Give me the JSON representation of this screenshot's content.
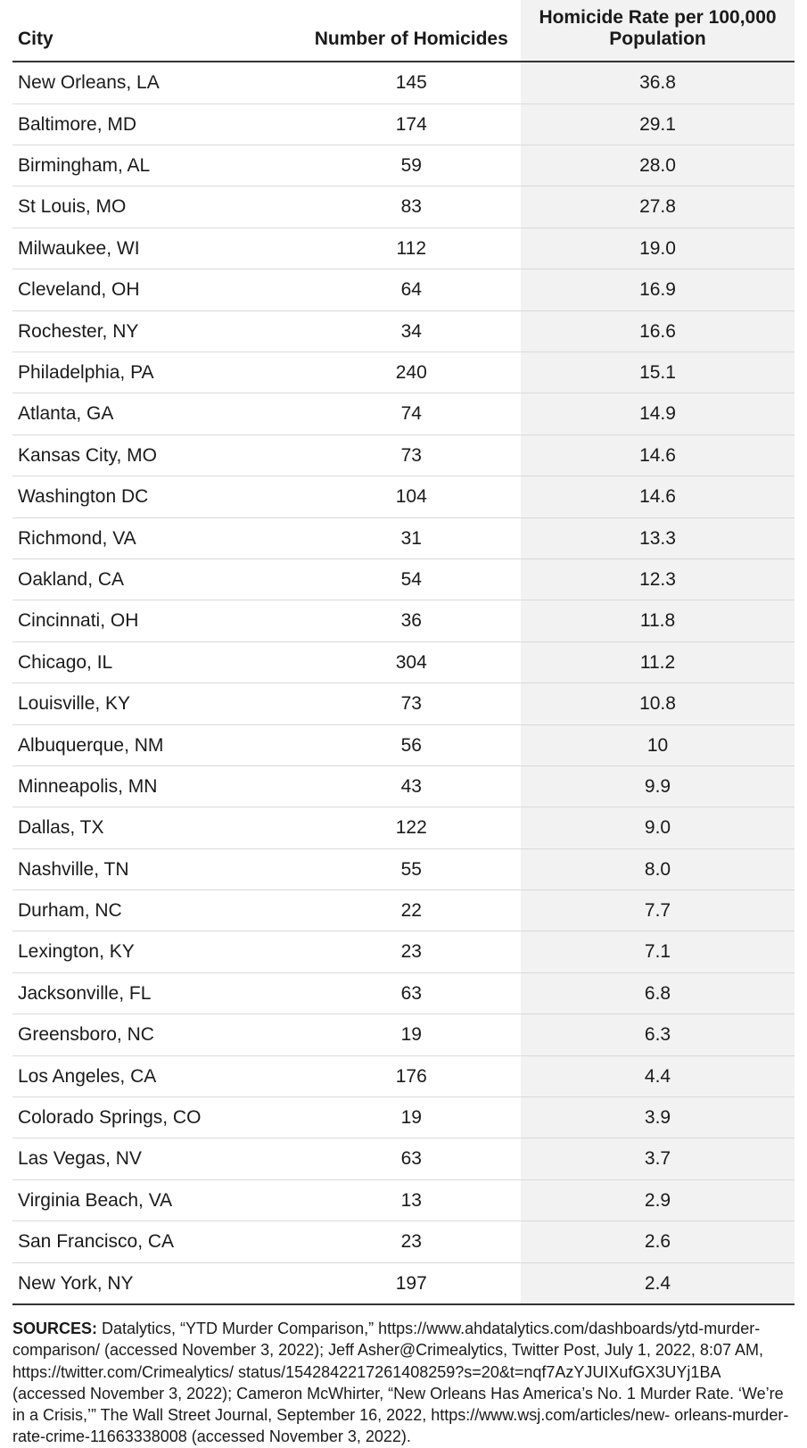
{
  "table": {
    "columns": [
      {
        "key": "city",
        "label": "City",
        "align": "left",
        "width_pct": 37
      },
      {
        "key": "homicides",
        "label": "Number of Homicides",
        "align": "center",
        "width_pct": 28
      },
      {
        "key": "rate",
        "label": "Homicide Rate per 100,000 Population",
        "align": "center",
        "width_pct": 35,
        "highlight_bg": "#f2f2f2"
      }
    ],
    "header_fontsize_pt": 16,
    "body_fontsize_pt": 16,
    "header_border_color": "#333333",
    "row_border_color": "#d9d9d9",
    "highlight_bg": "#f2f2f2",
    "background_color": "#ffffff",
    "rows": [
      {
        "city": "New Orleans, LA",
        "homicides": "145",
        "rate": "36.8"
      },
      {
        "city": "Baltimore, MD",
        "homicides": "174",
        "rate": "29.1"
      },
      {
        "city": "Birmingham, AL",
        "homicides": "59",
        "rate": "28.0"
      },
      {
        "city": "St Louis, MO",
        "homicides": "83",
        "rate": "27.8"
      },
      {
        "city": "Milwaukee, WI",
        "homicides": "112",
        "rate": "19.0"
      },
      {
        "city": "Cleveland, OH",
        "homicides": "64",
        "rate": "16.9"
      },
      {
        "city": "Rochester, NY",
        "homicides": "34",
        "rate": "16.6"
      },
      {
        "city": "Philadelphia, PA",
        "homicides": "240",
        "rate": "15.1"
      },
      {
        "city": "Atlanta, GA",
        "homicides": "74",
        "rate": "14.9"
      },
      {
        "city": "Kansas City, MO",
        "homicides": "73",
        "rate": "14.6"
      },
      {
        "city": "Washington DC",
        "homicides": "104",
        "rate": "14.6"
      },
      {
        "city": "Richmond, VA",
        "homicides": "31",
        "rate": "13.3"
      },
      {
        "city": "Oakland, CA",
        "homicides": "54",
        "rate": "12.3"
      },
      {
        "city": "Cincinnati, OH",
        "homicides": "36",
        "rate": "11.8"
      },
      {
        "city": "Chicago, IL",
        "homicides": "304",
        "rate": "11.2"
      },
      {
        "city": "Louisville, KY",
        "homicides": "73",
        "rate": "10.8"
      },
      {
        "city": "Albuquerque, NM",
        "homicides": "56",
        "rate": "10"
      },
      {
        "city": "Minneapolis, MN",
        "homicides": "43",
        "rate": "9.9"
      },
      {
        "city": "Dallas, TX",
        "homicides": "122",
        "rate": "9.0"
      },
      {
        "city": "Nashville, TN",
        "homicides": "55",
        "rate": "8.0"
      },
      {
        "city": "Durham, NC",
        "homicides": "22",
        "rate": "7.7"
      },
      {
        "city": "Lexington, KY",
        "homicides": "23",
        "rate": "7.1"
      },
      {
        "city": "Jacksonville, FL",
        "homicides": "63",
        "rate": "6.8"
      },
      {
        "city": "Greensboro, NC",
        "homicides": "19",
        "rate": "6.3"
      },
      {
        "city": "Los Angeles, CA",
        "homicides": "176",
        "rate": "4.4"
      },
      {
        "city": "Colorado Springs, CO",
        "homicides": "19",
        "rate": "3.9"
      },
      {
        "city": "Las Vegas, NV",
        "homicides": "63",
        "rate": "3.7"
      },
      {
        "city": "Virginia Beach, VA",
        "homicides": "13",
        "rate": "2.9"
      },
      {
        "city": "San Francisco, CA",
        "homicides": "23",
        "rate": "2.6"
      },
      {
        "city": "New York, NY",
        "homicides": "197",
        "rate": "2.4"
      }
    ]
  },
  "sources": {
    "label": "SOURCES:",
    "text": "Datalytics, “YTD Murder Comparison,” https://www.ahdatalytics.com/dashboards/ytd-murder-comparison/ (accessed November 3, 2022); Jeff Asher@Crimealytics, Twitter Post, July 1, 2022, 8:07 AM, https://twitter.com/Crimealytics/ status/1542842217261408259?s=20&t=nqf7AzYJUIXufGX3UYj1BA (accessed November 3, 2022); Cameron McWhirter, “New Orleans Has America’s No. 1 Murder Rate. ‘We’re in a Crisis,’” The Wall Street Journal, September 16, 2022, https://www.wsj.com/articles/new- orleans-murder-rate-crime-11663338008 (accessed November 3, 2022)."
  }
}
